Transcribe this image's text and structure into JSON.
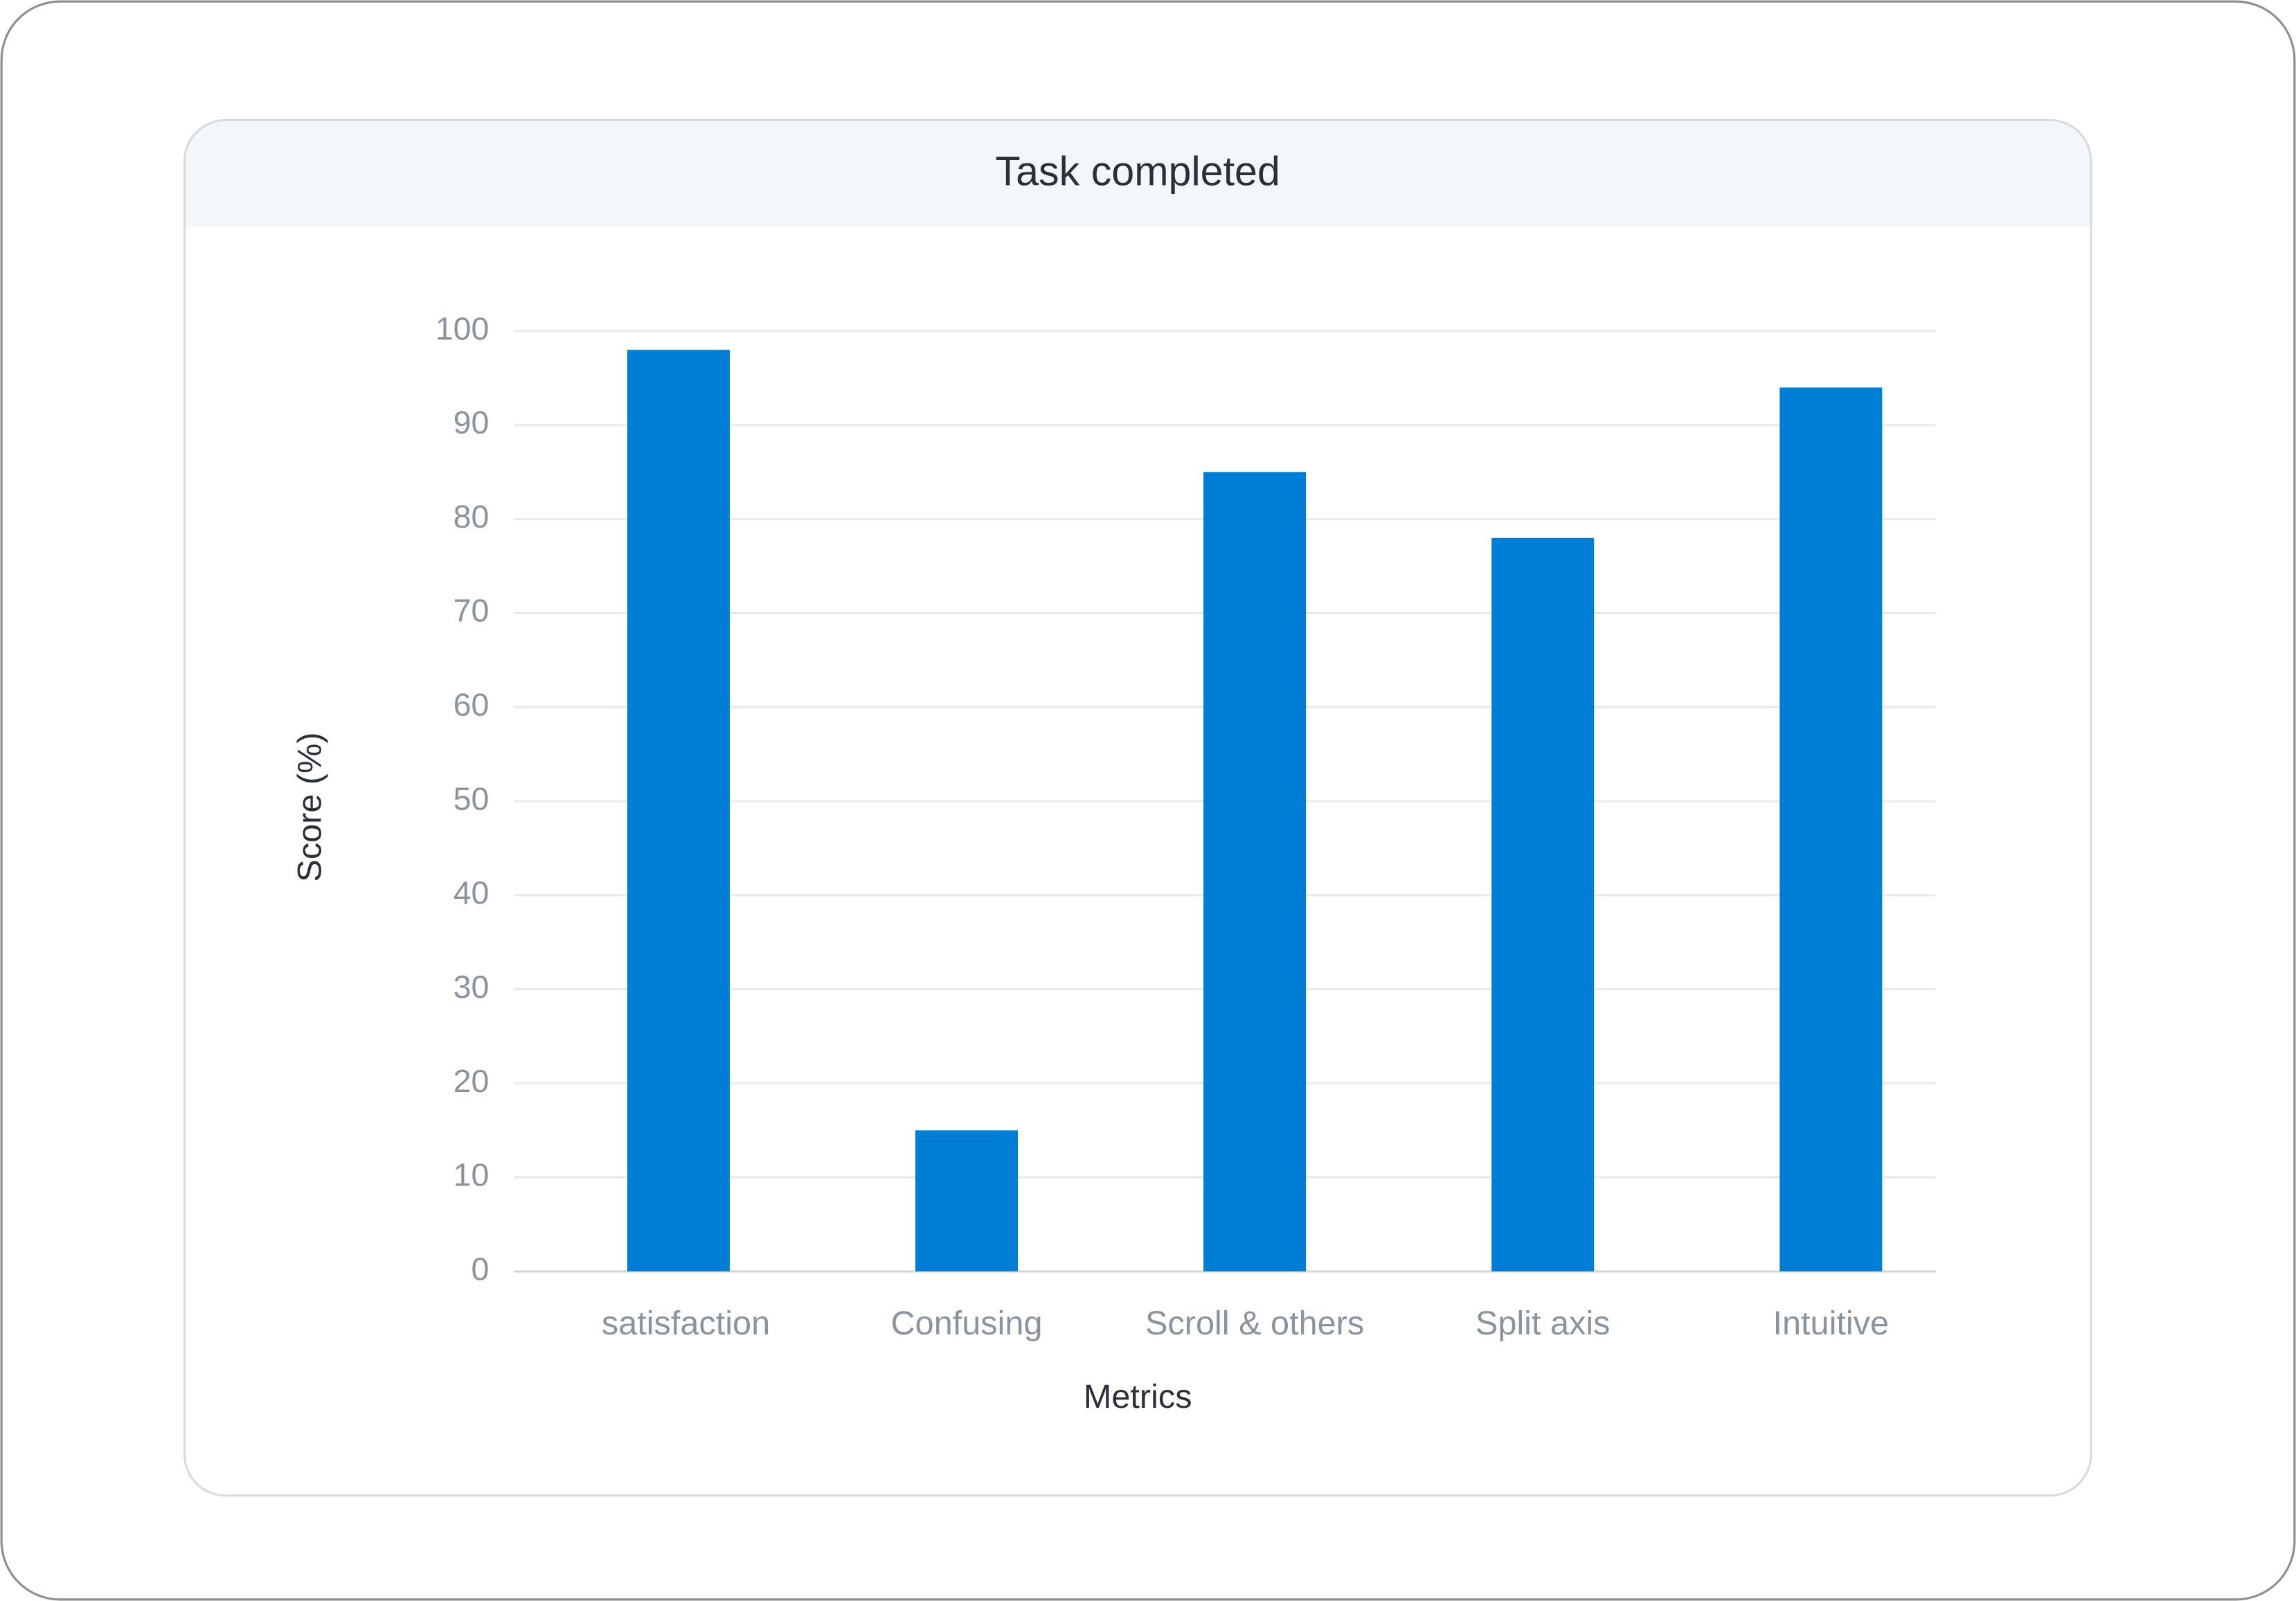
{
  "chart_data": {
    "type": "bar",
    "title": "Task completed",
    "x_label": "Metrics",
    "y_label": "Score (%)",
    "categories": [
      "satisfaction",
      "Confusing",
      "Scroll & others",
      "Split axis",
      "Intuitive"
    ],
    "values": [
      98,
      15,
      85,
      78,
      94
    ],
    "color": "#007dd4",
    "ylim": [
      0,
      100
    ],
    "yticks": [
      0,
      10,
      20,
      30,
      40,
      50,
      60,
      70,
      80,
      90,
      100
    ],
    "grid": true
  }
}
